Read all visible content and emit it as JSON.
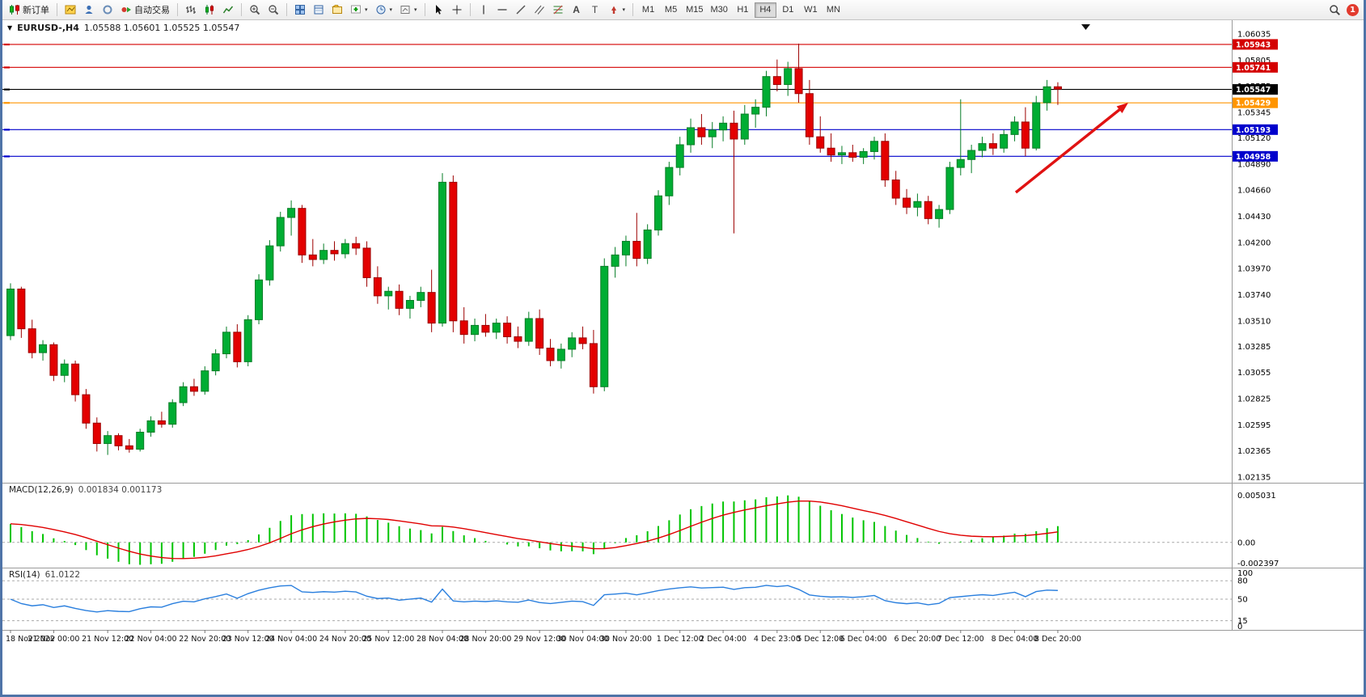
{
  "toolbar": {
    "new_order": "新订单",
    "autotrading": "自动交易",
    "timeframes": [
      "M1",
      "M5",
      "M15",
      "M30",
      "H1",
      "H4",
      "D1",
      "W1",
      "MN"
    ],
    "active_timeframe": "H4",
    "notification_count": "1"
  },
  "chart": {
    "title": "EURUSD-,H4",
    "ohlc": "1.05588 1.05601 1.05525 1.05547"
  },
  "chart_data": {
    "type": "candlestick",
    "symbol": "EURUSD-",
    "period": "H4",
    "current": {
      "open": 1.05588,
      "high": 1.05601,
      "low": 1.05525,
      "close": 1.05547
    },
    "price_axis_labels": [
      "1.06035",
      "1.05805",
      "1.05575",
      "1.05345",
      "1.05120",
      "1.04890",
      "1.04660",
      "1.04430",
      "1.04200",
      "1.03970",
      "1.03740",
      "1.03510",
      "1.03285",
      "1.03055",
      "1.02825",
      "1.02595",
      "1.02365",
      "1.02135"
    ],
    "levels": [
      {
        "label": "1.05943",
        "price": 1.05943,
        "color": "#d40000"
      },
      {
        "label": "1.05741",
        "price": 1.05741,
        "color": "#d40000"
      },
      {
        "label": "1.05547",
        "price": 1.05547,
        "color": "#000000"
      },
      {
        "label": "1.05429",
        "price": 1.05429,
        "color": "#ff9500"
      },
      {
        "label": "1.05193",
        "price": 1.05193,
        "color": "#0000cc"
      },
      {
        "label": "1.04958",
        "price": 1.04958,
        "color": "#0000cc"
      }
    ],
    "time_labels": [
      "18 Nov 2022",
      "21 Nov 00:00",
      "21 Nov 12:00",
      "22 Nov 04:00",
      "22 Nov 20:00",
      "23 Nov 12:00",
      "24 Nov 04:00",
      "24 Nov 20:00",
      "25 Nov 12:00",
      "28 Nov 04:00",
      "28 Nov 20:00",
      "29 Nov 12:00",
      "30 Nov 04:00",
      "30 Nov 20:00",
      "1 Dec 12:00",
      "2 Dec 04:00",
      "4 Dec 23:00",
      "5 Dec 12:00",
      "6 Dec 04:00",
      "6 Dec 20:00",
      "7 Dec 12:00",
      "8 Dec 04:00",
      "8 Dec 20:00"
    ],
    "candles": [
      [
        1.0338,
        1.0384,
        1.0334,
        1.0379
      ],
      [
        1.0379,
        1.0381,
        1.0336,
        1.0344
      ],
      [
        1.0344,
        1.0352,
        1.0318,
        1.0323
      ],
      [
        1.0323,
        1.0334,
        1.0316,
        1.033
      ],
      [
        1.033,
        1.0332,
        1.0298,
        1.0303
      ],
      [
        1.0303,
        1.0317,
        1.0297,
        1.0313
      ],
      [
        1.0313,
        1.0316,
        1.028,
        1.0286
      ],
      [
        1.0286,
        1.0291,
        1.0256,
        1.0261
      ],
      [
        1.0261,
        1.0266,
        1.0236,
        1.0243
      ],
      [
        1.0243,
        1.0254,
        1.0233,
        1.025
      ],
      [
        1.025,
        1.0252,
        1.0237,
        1.0241
      ],
      [
        1.0241,
        1.0247,
        1.0235,
        1.0238
      ],
      [
        1.0238,
        1.0256,
        1.0236,
        1.0253
      ],
      [
        1.0253,
        1.0267,
        1.0249,
        1.0263
      ],
      [
        1.0263,
        1.0271,
        1.0257,
        1.026
      ],
      [
        1.026,
        1.0282,
        1.0257,
        1.0279
      ],
      [
        1.0279,
        1.0297,
        1.0276,
        1.0293
      ],
      [
        1.0293,
        1.03,
        1.0285,
        1.0289
      ],
      [
        1.0289,
        1.0311,
        1.0286,
        1.0307
      ],
      [
        1.0307,
        1.0326,
        1.0303,
        1.0322
      ],
      [
        1.0322,
        1.0346,
        1.0318,
        1.0341
      ],
      [
        1.0341,
        1.0348,
        1.031,
        1.0315
      ],
      [
        1.0315,
        1.0356,
        1.0311,
        1.0352
      ],
      [
        1.0352,
        1.0392,
        1.0348,
        1.0387
      ],
      [
        1.0387,
        1.0422,
        1.0382,
        1.0417
      ],
      [
        1.0417,
        1.0447,
        1.0412,
        1.0442
      ],
      [
        1.0442,
        1.0457,
        1.0426,
        1.045
      ],
      [
        1.045,
        1.0453,
        1.0402,
        1.0409
      ],
      [
        1.0409,
        1.0423,
        1.0399,
        1.0405
      ],
      [
        1.0405,
        1.0419,
        1.0401,
        1.0413
      ],
      [
        1.0413,
        1.0421,
        1.0404,
        1.041
      ],
      [
        1.041,
        1.0423,
        1.0406,
        1.0419
      ],
      [
        1.0419,
        1.0425,
        1.0409,
        1.0415
      ],
      [
        1.0415,
        1.0421,
        1.0381,
        1.0389
      ],
      [
        1.0389,
        1.0399,
        1.0366,
        1.0373
      ],
      [
        1.0373,
        1.0381,
        1.0361,
        1.0377
      ],
      [
        1.0377,
        1.0383,
        1.0356,
        1.0362
      ],
      [
        1.0362,
        1.0373,
        1.0353,
        1.0369
      ],
      [
        1.0369,
        1.0381,
        1.0363,
        1.0376
      ],
      [
        1.0376,
        1.0396,
        1.0341,
        1.0349
      ],
      [
        1.0349,
        1.0481,
        1.0346,
        1.0473
      ],
      [
        1.0473,
        1.0479,
        1.0341,
        1.0351
      ],
      [
        1.0351,
        1.0363,
        1.0331,
        1.0339
      ],
      [
        1.0339,
        1.0353,
        1.0333,
        1.0347
      ],
      [
        1.0347,
        1.0357,
        1.0337,
        1.0341
      ],
      [
        1.0341,
        1.0353,
        1.0335,
        1.0349
      ],
      [
        1.0349,
        1.0355,
        1.0331,
        1.0337
      ],
      [
        1.0337,
        1.0346,
        1.0327,
        1.0333
      ],
      [
        1.0333,
        1.0359,
        1.0329,
        1.0353
      ],
      [
        1.0353,
        1.0361,
        1.0321,
        1.0327
      ],
      [
        1.0327,
        1.0335,
        1.0311,
        1.0316
      ],
      [
        1.0316,
        1.0331,
        1.0309,
        1.0326
      ],
      [
        1.0326,
        1.0341,
        1.0319,
        1.0336
      ],
      [
        1.0336,
        1.0346,
        1.0326,
        1.0331
      ],
      [
        1.0331,
        1.0343,
        1.0287,
        1.0293
      ],
      [
        1.0293,
        1.0406,
        1.0289,
        1.0399
      ],
      [
        1.0399,
        1.0416,
        1.0389,
        1.0409
      ],
      [
        1.0409,
        1.0426,
        1.0399,
        1.0421
      ],
      [
        1.0421,
        1.0446,
        1.0399,
        1.0406
      ],
      [
        1.0406,
        1.0436,
        1.0401,
        1.0431
      ],
      [
        1.0431,
        1.0466,
        1.0426,
        1.0461
      ],
      [
        1.0461,
        1.0491,
        1.0453,
        1.0486
      ],
      [
        1.0486,
        1.0513,
        1.0479,
        1.0506
      ],
      [
        1.0506,
        1.0529,
        1.0499,
        1.0521
      ],
      [
        1.0521,
        1.0533,
        1.0506,
        1.0513
      ],
      [
        1.0513,
        1.0526,
        1.0503,
        1.0519
      ],
      [
        1.0519,
        1.0531,
        1.0509,
        1.0525
      ],
      [
        1.0525,
        1.0536,
        1.0428,
        1.0511
      ],
      [
        1.0511,
        1.0541,
        1.0506,
        1.0533
      ],
      [
        1.0533,
        1.0546,
        1.0521,
        1.0539
      ],
      [
        1.0539,
        1.0571,
        1.0531,
        1.0566
      ],
      [
        1.0566,
        1.0581,
        1.0553,
        1.0559
      ],
      [
        1.0559,
        1.0579,
        1.0549,
        1.0573
      ],
      [
        1.0573,
        1.0595,
        1.0543,
        1.0551
      ],
      [
        1.0551,
        1.0563,
        1.0506,
        1.0513
      ],
      [
        1.0513,
        1.0531,
        1.0499,
        1.0503
      ],
      [
        1.0503,
        1.0516,
        1.0491,
        1.0497
      ],
      [
        1.0497,
        1.0505,
        1.0489,
        1.0499
      ],
      [
        1.0499,
        1.0506,
        1.0491,
        1.0495
      ],
      [
        1.0495,
        1.0503,
        1.0489,
        1.05
      ],
      [
        1.05,
        1.0513,
        1.0493,
        1.0509
      ],
      [
        1.0509,
        1.0516,
        1.0469,
        1.0475
      ],
      [
        1.0475,
        1.0483,
        1.0453,
        1.0459
      ],
      [
        1.0459,
        1.0467,
        1.0445,
        1.0451
      ],
      [
        1.0451,
        1.0463,
        1.0443,
        1.0456
      ],
      [
        1.0456,
        1.0461,
        1.0436,
        1.0441
      ],
      [
        1.0441,
        1.0453,
        1.0433,
        1.0449
      ],
      [
        1.0449,
        1.0491,
        1.0445,
        1.0486
      ],
      [
        1.0486,
        1.0546,
        1.0479,
        1.0493
      ],
      [
        1.0493,
        1.0506,
        1.0481,
        1.0501
      ],
      [
        1.0501,
        1.0513,
        1.0495,
        1.0507
      ],
      [
        1.0507,
        1.0516,
        1.0497,
        1.0503
      ],
      [
        1.0503,
        1.0519,
        1.0499,
        1.0515
      ],
      [
        1.0515,
        1.0531,
        1.0509,
        1.0526
      ],
      [
        1.0526,
        1.0539,
        1.0496,
        1.0503
      ],
      [
        1.0503,
        1.0549,
        1.0501,
        1.0543
      ],
      [
        1.0543,
        1.0563,
        1.0536,
        1.0557
      ],
      [
        1.0557,
        1.0561,
        1.0541,
        1.0555
      ]
    ],
    "indicators": {
      "macd": {
        "label": "MACD(12,26,9)",
        "values": "0.001834 0.001173",
        "fast": 12,
        "slow": 26,
        "signal": 9,
        "axis_labels": [
          {
            "text": "0.005031",
            "value": 0.005031
          },
          {
            "text": "0.00",
            "value": 0
          },
          {
            "text": "-0.002397",
            "value": -0.002397
          }
        ],
        "axis_max": 0.0063,
        "axis_min": -0.0027,
        "hist_max": 0.005031,
        "hist_min": -0.002397
      },
      "rsi": {
        "label": "RSI(14)",
        "value": "61.0122",
        "period": 14,
        "axis_labels": [
          {
            "text": "100",
            "value": 100
          },
          {
            "text": "80",
            "value": 80
          },
          {
            "text": "50",
            "value": 50
          },
          {
            "text": "15",
            "value": 15
          },
          {
            "text": "0",
            "value": 0
          }
        ],
        "levels": [
          80,
          50,
          15
        ]
      }
    },
    "annotation": {
      "type": "arrow",
      "color": "#e01212",
      "from": [
        1253,
        213
      ],
      "to": [
        1392,
        102
      ]
    },
    "colors": {
      "up": "#00ad33",
      "down": "#e30000",
      "up_border": "#067d26",
      "down_border": "#9c0000",
      "macd_hist": "#00c400",
      "macd_signal": "#e00000",
      "rsi_line": "#2a7fde",
      "grid": "#a6a6a6",
      "axis_text": "#000000"
    }
  }
}
